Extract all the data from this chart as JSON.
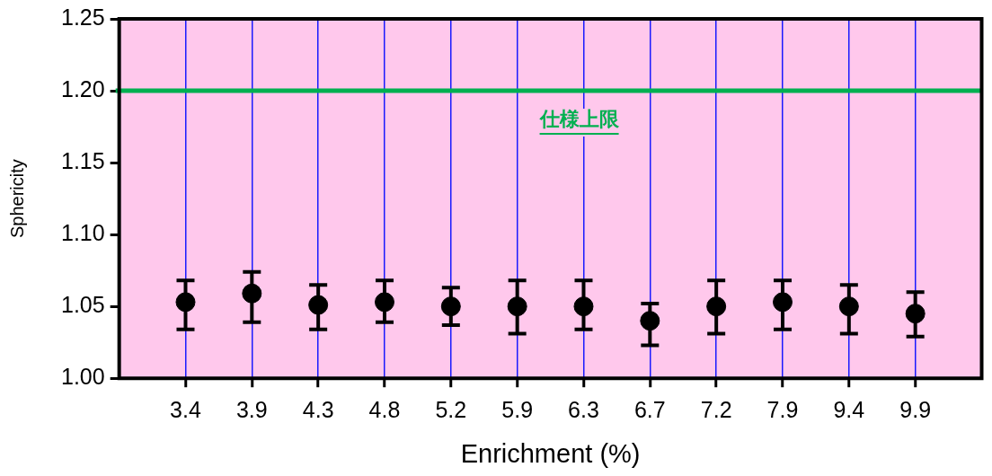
{
  "chart_data": {
    "type": "scatter",
    "xlabel": "Enrichment (%)",
    "ylabel": "Sphericity",
    "categories": [
      "3.4",
      "3.9",
      "4.3",
      "4.8",
      "5.2",
      "5.9",
      "6.3",
      "6.7",
      "7.2",
      "7.9",
      "9.4",
      "9.9"
    ],
    "series": [
      {
        "color": "#000000",
        "values": [
          1.053,
          1.059,
          1.051,
          1.053,
          1.05,
          1.05,
          1.05,
          1.04,
          1.05,
          1.053,
          1.05,
          1.045
        ],
        "errors": [
          [
            1.034,
            1.068
          ],
          [
            1.039,
            1.074
          ],
          [
            1.034,
            1.065
          ],
          [
            1.039,
            1.068
          ],
          [
            1.037,
            1.063
          ],
          [
            1.031,
            1.068
          ],
          [
            1.034,
            1.068
          ],
          [
            1.023,
            1.052
          ],
          [
            1.031,
            1.068
          ],
          [
            1.034,
            1.068
          ],
          [
            1.031,
            1.065
          ],
          [
            1.029,
            1.06
          ]
        ]
      }
    ],
    "ylim": [
      1.0,
      1.25
    ],
    "yticks": [
      {
        "value": 1.0,
        "label": "1.00"
      },
      {
        "value": 1.05,
        "label": "1.05"
      },
      {
        "value": 1.1,
        "label": "1.10"
      },
      {
        "value": 1.15,
        "label": "1.15"
      },
      {
        "value": 1.2,
        "label": "1.20"
      },
      {
        "value": 1.25,
        "label": "1.25"
      }
    ],
    "ref_lines": [
      {
        "axis": "y",
        "value": 1.2,
        "label": "仕様上限",
        "color": "#00b050"
      }
    ],
    "grid": "x",
    "marker": "circle",
    "legend": false
  }
}
